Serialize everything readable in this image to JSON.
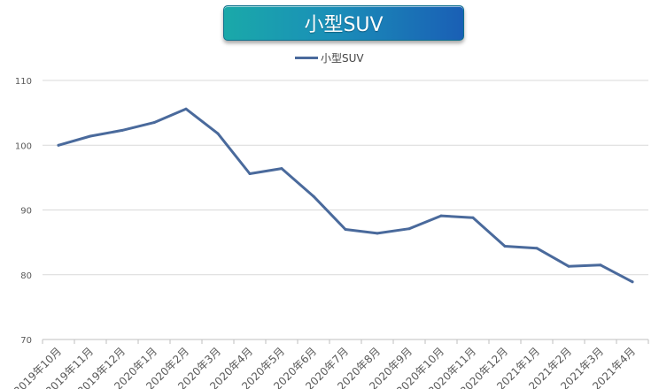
{
  "chart_data": {
    "type": "line",
    "title": "小型SUV",
    "categories": [
      "2019年10月",
      "2019年11月",
      "2019年12月",
      "2020年1月",
      "2020年2月",
      "2020年3月",
      "2020年4月",
      "2020年5月",
      "2020年6月",
      "2020年7月",
      "2020年8月",
      "2020年9月",
      "2020年10月",
      "2020年11月",
      "2020年12月",
      "2021年1月",
      "2021年2月",
      "2021年3月",
      "2021年4月"
    ],
    "series": [
      {
        "name": "小型SUV",
        "values": [
          100.0,
          101.4,
          102.3,
          103.5,
          105.6,
          101.8,
          95.6,
          96.4,
          92.1,
          87.0,
          86.4,
          87.1,
          89.1,
          88.8,
          84.4,
          84.1,
          81.3,
          81.5,
          78.9
        ]
      }
    ],
    "yticks": [
      70,
      80,
      90,
      100,
      110
    ],
    "ylim": [
      70,
      110
    ],
    "grid": true,
    "legend_position": "top-center",
    "line_color": "#4a6a9c"
  }
}
